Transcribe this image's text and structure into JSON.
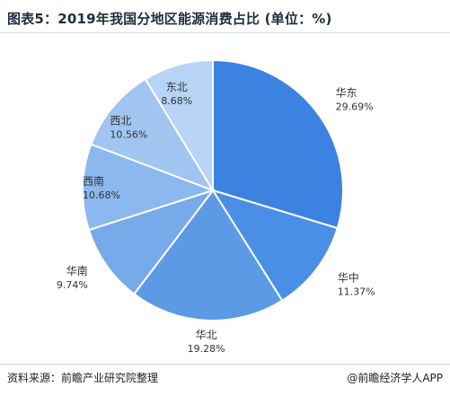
{
  "header": {
    "title": "图表5：2019年我国分地区能源消费占比 (单位：%)"
  },
  "footer": {
    "source": "资料来源：前瞻产业研究院整理",
    "credit": "@前瞻经济学人APP"
  },
  "chart_data": {
    "type": "pie",
    "title": "图表5：2019年我国分地区能源消费占比 (单位：%)",
    "unit": "%",
    "slices": [
      {
        "label": "华东",
        "value": 29.69,
        "display": "29.69%",
        "color": "#3c82e0"
      },
      {
        "label": "华中",
        "value": 11.37,
        "display": "11.37%",
        "color": "#4a8fe5"
      },
      {
        "label": "华北",
        "value": 19.28,
        "display": "19.28%",
        "color": "#5d9ae6"
      },
      {
        "label": "华南",
        "value": 9.74,
        "display": "9.74%",
        "color": "#76aaea"
      },
      {
        "label": "西南",
        "value": 10.68,
        "display": "10.68%",
        "color": "#8bb8ee"
      },
      {
        "label": "西北",
        "value": 10.56,
        "display": "10.56%",
        "color": "#a0c5f1"
      },
      {
        "label": "东北",
        "value": 8.68,
        "display": "8.68%",
        "color": "#b7d3f5"
      }
    ]
  }
}
